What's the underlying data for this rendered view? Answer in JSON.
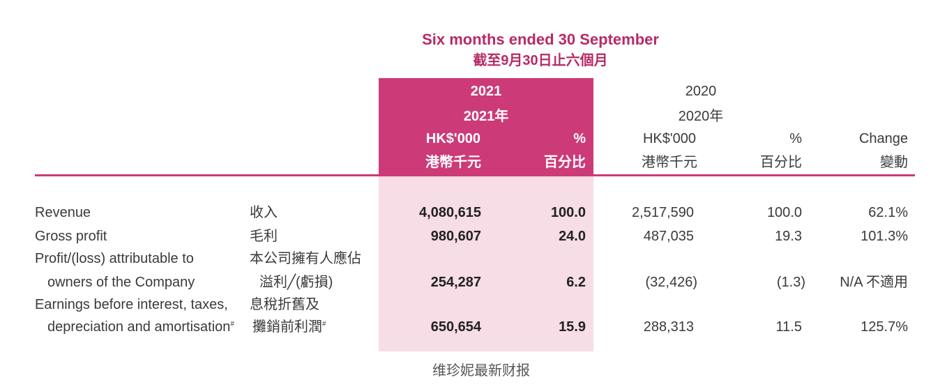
{
  "header": {
    "period_en": "Six months ended 30 September",
    "period_zh": "截至9月30日止六個月"
  },
  "columns": {
    "y2021": {
      "year": "2021",
      "year_zh": "2021年",
      "amount_en": "HK$'000",
      "amount_zh": "港幣千元",
      "pct_en": "%",
      "pct_zh": "百分比"
    },
    "y2020": {
      "year": "2020",
      "year_zh": "2020年",
      "amount_en": "HK$'000",
      "amount_zh": "港幣千元",
      "pct_en": "%",
      "pct_zh": "百分比"
    },
    "change": {
      "en": "Change",
      "zh": "變動"
    }
  },
  "rows": [
    {
      "en1": "Revenue",
      "en2": "",
      "zh1": "收入",
      "zh2": "",
      "a2021": "4,080,615",
      "p2021": "100.0",
      "a2020": "2,517,590",
      "p2020": "100.0",
      "change": "62.1%"
    },
    {
      "en1": "Gross profit",
      "en2": "",
      "zh1": "毛利",
      "zh2": "",
      "a2021": "980,607",
      "p2021": "24.0",
      "a2020": "487,035",
      "p2020": "19.3",
      "change": "101.3%"
    },
    {
      "en1": "Profit/(loss) attributable to",
      "en2": "owners of the Company",
      "zh1": "本公司擁有人應佔",
      "zh2": "溢利╱(虧損)",
      "a2021": "254,287",
      "p2021": "6.2",
      "a2020": "(32,426)",
      "p2020": "(1.3)",
      "change": "N/A 不適用"
    },
    {
      "en1": "Earnings before interest, taxes,",
      "en2": "depreciation and amortisation",
      "zh1": "息稅折舊及",
      "zh2": "攤銷前利潤",
      "note": "#",
      "a2021": "650,654",
      "p2021": "15.9",
      "a2020": "288,313",
      "p2020": "11.5",
      "change": "125.7%"
    }
  ],
  "footer": {
    "caption": "维珍妮最新财报"
  },
  "colors": {
    "accent": "#cc3a77",
    "highlight": "#f6dde6",
    "text": "#3a3a3a"
  }
}
